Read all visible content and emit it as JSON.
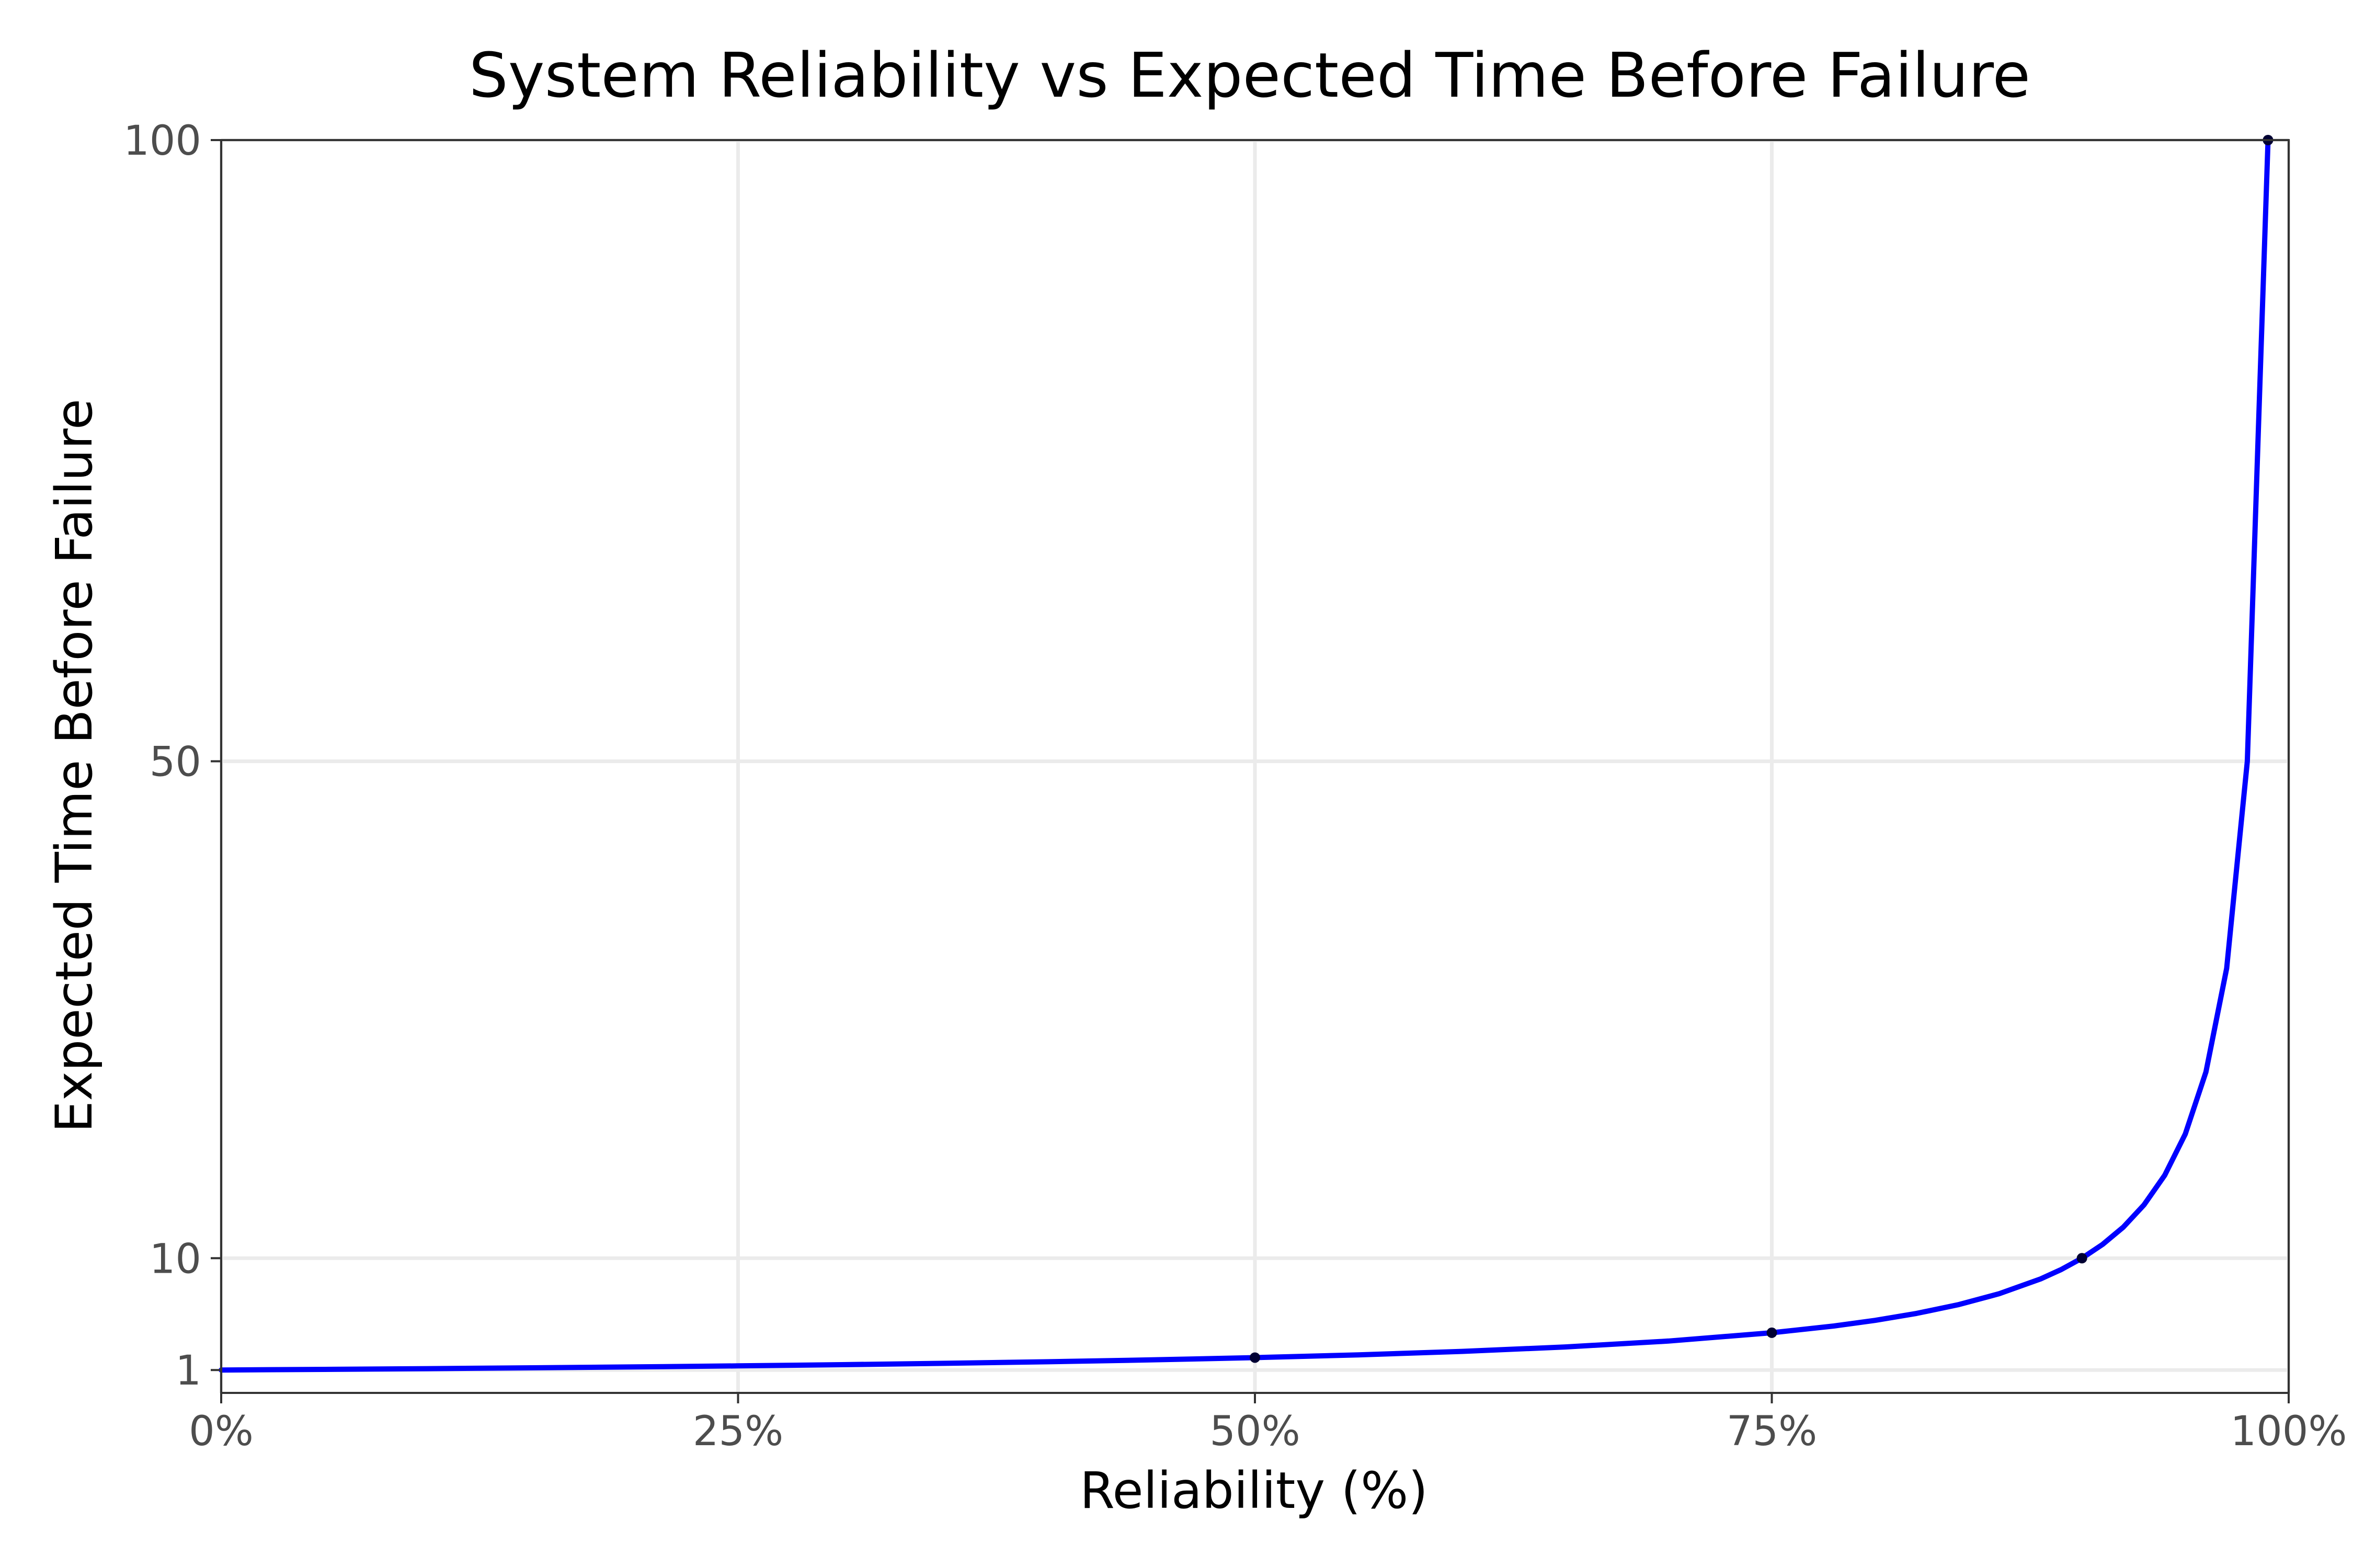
{
  "chart_data": {
    "type": "line",
    "title": "System Reliability vs Expected Time Before Failure",
    "xlabel": "Reliability (%)",
    "ylabel": "Expected Time Before Failure",
    "xlim": [
      0,
      1
    ],
    "ylim": [
      0,
      100
    ],
    "x_ticks": [
      {
        "value": 0,
        "label": "0%"
      },
      {
        "value": 0.25,
        "label": "25%"
      },
      {
        "value": 0.5,
        "label": "50%"
      },
      {
        "value": 0.75,
        "label": "75%"
      },
      {
        "value": 1,
        "label": "100%"
      }
    ],
    "y_ticks": [
      {
        "value": 1,
        "label": "1"
      },
      {
        "value": 10,
        "label": "10"
      },
      {
        "value": 50,
        "label": "50"
      },
      {
        "value": 100,
        "label": "100"
      }
    ],
    "grid": true,
    "series": [
      {
        "color": "#0000ff",
        "x": [
          0,
          0.05,
          0.1,
          0.15,
          0.2,
          0.25,
          0.3,
          0.35,
          0.4,
          0.45,
          0.5,
          0.55,
          0.6,
          0.65,
          0.7,
          0.75,
          0.78,
          0.8,
          0.82,
          0.84,
          0.86,
          0.88,
          0.89,
          0.9,
          0.91,
          0.92,
          0.93,
          0.94,
          0.95,
          0.96,
          0.97,
          0.98,
          0.99
        ],
        "y": [
          1,
          1.053,
          1.111,
          1.176,
          1.25,
          1.333,
          1.429,
          1.538,
          1.667,
          1.818,
          2,
          2.222,
          2.5,
          2.857,
          3.333,
          4,
          4.545,
          5,
          5.556,
          6.25,
          7.143,
          8.333,
          9.091,
          10,
          11.111,
          12.5,
          14.286,
          16.667,
          20,
          25,
          33.333,
          50,
          100
        ]
      }
    ],
    "marked_points": [
      {
        "x": 0.5,
        "y": 2
      },
      {
        "x": 0.75,
        "y": 4
      },
      {
        "x": 0.9,
        "y": 10
      },
      {
        "x": 0.99,
        "y": 100
      }
    ]
  }
}
